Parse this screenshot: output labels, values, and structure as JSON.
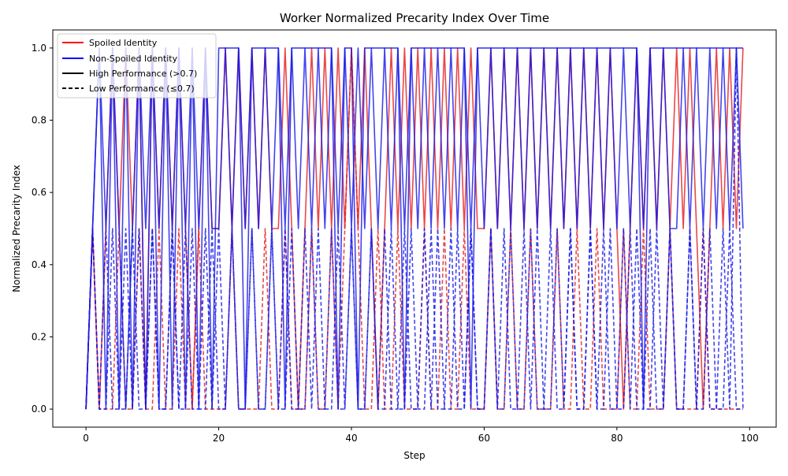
{
  "chart_data": {
    "type": "line",
    "title": "Worker Normalized Precarity Index Over Time",
    "xlabel": "Step",
    "ylabel": "Normalized Precarity Index",
    "xlim": [
      -5,
      104
    ],
    "ylim": [
      -0.05,
      1.05
    ],
    "xticks": [
      0,
      20,
      40,
      60,
      80,
      100
    ],
    "xtick_labels": [
      "0",
      "20",
      "40",
      "60",
      "80",
      "100"
    ],
    "yticks": [
      0.0,
      0.2,
      0.4,
      0.6,
      0.8,
      1.0
    ],
    "ytick_labels": [
      "0.0",
      "0.2",
      "0.4",
      "0.6",
      "0.8",
      "1.0"
    ],
    "grid": false,
    "legend_position": "top-left",
    "legend": [
      {
        "label": "Spoiled Identity",
        "color": "#ff0000",
        "style": "solid"
      },
      {
        "label": "Non-Spoiled Identity",
        "color": "#0000ff",
        "style": "solid"
      },
      {
        "label": "High Performance (>0.7)",
        "color": "#000000",
        "style": "solid"
      },
      {
        "label": "Low Performance (≤0.7)",
        "color": "#000000",
        "style": "dashed"
      }
    ],
    "colors": {
      "spoiled": "#e31a1c",
      "non_spoiled": "#1515e6"
    },
    "levels": [
      0,
      0.5,
      1
    ],
    "series": [
      {
        "group": "spoiled",
        "style": "solid",
        "values": [
          0,
          0.5,
          0,
          0.5,
          1,
          0.5,
          1,
          0.5,
          1,
          0,
          1,
          0.5,
          1,
          0.5,
          1,
          0.5,
          0,
          0.5,
          1,
          0.5,
          0.5,
          1,
          0.5,
          1,
          0.5,
          1,
          0.5,
          1,
          0.5,
          0.5,
          1,
          0.5,
          0,
          0.5,
          1,
          0.5,
          1,
          0.5,
          1,
          0.5,
          1,
          0.5,
          1,
          0.5,
          0,
          0.5,
          1,
          0.5,
          1,
          0.5,
          1,
          0.5,
          1,
          0.5,
          1,
          0.5,
          1,
          0.5,
          1,
          0.5,
          0.5,
          1,
          0.5,
          1,
          0.5,
          1,
          0.5,
          1,
          0.5,
          1,
          0.5,
          1,
          0.5,
          1,
          0.5,
          1,
          0.5,
          1,
          0.5,
          1,
          0.5,
          0,
          0.5,
          1,
          0.5,
          1,
          0.5,
          1,
          0.5,
          1,
          0.5,
          1,
          0.5,
          0,
          0.5,
          1,
          0.5,
          1,
          0.5,
          1
        ]
      },
      {
        "group": "spoiled",
        "style": "dashed",
        "values": [
          0,
          0.5,
          0,
          0,
          0,
          0.5,
          0,
          0,
          0.5,
          0,
          0,
          0.5,
          0,
          0,
          0.5,
          0,
          0,
          0.5,
          0,
          0,
          0,
          0,
          0.5,
          0,
          0,
          0,
          0,
          0.5,
          0,
          0,
          0.5,
          0,
          0,
          0,
          0.5,
          0,
          0,
          0.5,
          0,
          0.5,
          1,
          0.5,
          0,
          0,
          0.5,
          0,
          0,
          0.5,
          0,
          0,
          0,
          0.5,
          0,
          0,
          0.5,
          0,
          0,
          0.5,
          0,
          0,
          0,
          0.5,
          0,
          0,
          0.5,
          0,
          0,
          0.5,
          0,
          0,
          0,
          0.5,
          0,
          0,
          0.5,
          0,
          0,
          0.5,
          0,
          0,
          0,
          0.5,
          0,
          0,
          0.5,
          0,
          0,
          0,
          0.5,
          0,
          0,
          0,
          0,
          0.5,
          0,
          0,
          0,
          0,
          0,
          0
        ]
      },
      {
        "group": "non_spoiled",
        "style": "solid",
        "values": [
          0,
          0.5,
          1,
          0.5,
          1,
          0.5,
          0,
          0.5,
          1,
          0.5,
          1,
          0.5,
          1,
          0.5,
          1,
          0.5,
          1,
          0.5,
          1,
          0.5,
          0.5,
          1,
          0.5,
          1,
          0.5,
          1,
          0.5,
          1,
          0.5,
          1,
          0.5,
          1,
          0.5,
          1,
          0.5,
          1,
          0.5,
          1,
          0.5,
          1,
          0.5,
          1,
          0.5,
          1,
          0.5,
          1,
          0.5,
          1,
          0.5,
          1,
          0.5,
          1,
          0.5,
          1,
          0.5,
          1,
          0.5,
          1,
          0.5,
          1,
          0.5,
          1,
          0.5,
          1,
          0.5,
          1,
          0.5,
          1,
          0.5,
          1,
          0.5,
          1,
          0.5,
          1,
          0.5,
          1,
          0.5,
          1,
          0.5,
          1,
          0.5,
          1,
          0.5,
          1,
          0.5,
          1,
          0.5,
          1,
          0.5,
          0.5,
          1,
          0.5,
          1,
          0.5,
          1,
          0.5,
          1,
          0.5,
          1,
          0.5
        ]
      },
      {
        "group": "non_spoiled",
        "style": "solid",
        "values": [
          0,
          0.5,
          1,
          0,
          1,
          0,
          1,
          0,
          1,
          0,
          1,
          0,
          1,
          0,
          1,
          0,
          1,
          0,
          1,
          0,
          1,
          1,
          1,
          1,
          0,
          1,
          1,
          1,
          1,
          1,
          0,
          1,
          1,
          1,
          1,
          1,
          1,
          1,
          0,
          1,
          1,
          0,
          1,
          1,
          1,
          1,
          1,
          1,
          0,
          1,
          1,
          1,
          1,
          1,
          1,
          1,
          1,
          1,
          0,
          1,
          1,
          1,
          1,
          1,
          1,
          1,
          1,
          1,
          1,
          1,
          1,
          1,
          1,
          1,
          1,
          1,
          1,
          1,
          1,
          1,
          1,
          1,
          1,
          1,
          0,
          1,
          1,
          1,
          1,
          1,
          1,
          1,
          1,
          1,
          1,
          1,
          1,
          1,
          1,
          1
        ]
      },
      {
        "group": "non_spoiled",
        "style": "dashed",
        "values": [
          0,
          0.5,
          0,
          0.5,
          0,
          0,
          0.5,
          0,
          0.5,
          0,
          0.5,
          0,
          0,
          0.5,
          0,
          0.5,
          0,
          0,
          0.5,
          0,
          0.5,
          0,
          0.5,
          0,
          0,
          0.5,
          0,
          0,
          0.5,
          0,
          0.5,
          0,
          0,
          0.5,
          0,
          0.5,
          0,
          0,
          0.5,
          0,
          0.5,
          0,
          0,
          0.5,
          0,
          0.5,
          0,
          0,
          0.5,
          0,
          0,
          0.5,
          0,
          0.5,
          0,
          0,
          0.5,
          0,
          0.5,
          0,
          0,
          0.5,
          0,
          0.5,
          0,
          0,
          0.5,
          0,
          0.5,
          0,
          0,
          0.5,
          0,
          0.5,
          0,
          0,
          0.5,
          0,
          0.5,
          0,
          0,
          0.5,
          0,
          0.5,
          0,
          0,
          0.5,
          0,
          0.5,
          0,
          0,
          0.5,
          0,
          0.5,
          0,
          0,
          0.5,
          0,
          1,
          0
        ]
      },
      {
        "group": "non_spoiled",
        "style": "dashed",
        "values": [
          0,
          0.5,
          0,
          0,
          0.5,
          0,
          0,
          0.5,
          0,
          0,
          0.5,
          0,
          0,
          0.5,
          0,
          0,
          0.5,
          0,
          0,
          0.5,
          0,
          0,
          0.5,
          0,
          0,
          0.5,
          0,
          0,
          0.5,
          0,
          0,
          0.5,
          0,
          0,
          0.5,
          0,
          0,
          0.5,
          0,
          0,
          0.5,
          0,
          0,
          0.5,
          0,
          0,
          0.5,
          0,
          0,
          0.5,
          0,
          0,
          0.5,
          0,
          0,
          0.5,
          0,
          0,
          0.5,
          0,
          0,
          0.5,
          0,
          0,
          0.5,
          0,
          0,
          0.5,
          0,
          0,
          0.5,
          0,
          0,
          0.5,
          0,
          0,
          0.5,
          0,
          0,
          0.5,
          0,
          0,
          0.5,
          0,
          0,
          0.5,
          0,
          0,
          0.5,
          0,
          0,
          0.5,
          0,
          0,
          0.5,
          0,
          0,
          0.5,
          0,
          0
        ]
      }
    ]
  }
}
